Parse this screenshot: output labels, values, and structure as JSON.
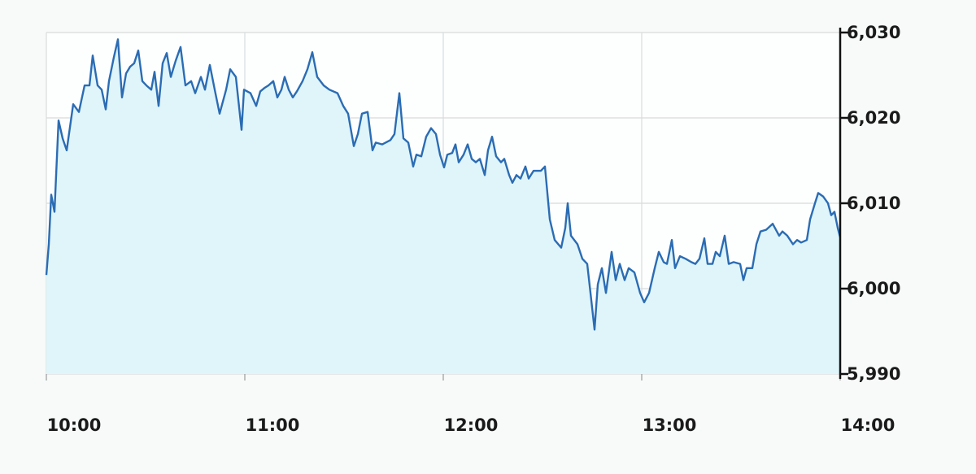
{
  "chart_data": {
    "type": "area",
    "title": "",
    "xlabel": "",
    "ylabel": "",
    "xlim": [
      "10:00:00",
      "14:00:00"
    ],
    "ylim": [
      5990,
      6030
    ],
    "x_ticks": [
      "10:00",
      "11:00",
      "12:00",
      "13:00",
      "14:00"
    ],
    "y_ticks": [
      "5,990",
      "6,000",
      "6,010",
      "6,020",
      "6,030"
    ],
    "y_tick_values": [
      5990,
      6000,
      6010,
      6020,
      6030
    ],
    "y_axis_position": "right",
    "grid": true,
    "colors": {
      "line": "#2b6cb3",
      "fill": "#dff5fa",
      "grid": "#d9dcdc",
      "axis": "#111111"
    },
    "series": [
      {
        "points": [
          [
            "10:00:00",
            6001.6
          ],
          [
            "10:00:44",
            6005.2
          ],
          [
            "10:01:29",
            6011.0
          ],
          [
            "10:02:28",
            6009.0
          ],
          [
            "10:03:41",
            6019.7
          ],
          [
            "10:04:55",
            6017.6
          ],
          [
            "10:06:09",
            6016.2
          ],
          [
            "10:08:07",
            6021.6
          ],
          [
            "10:09:50",
            6020.7
          ],
          [
            "10:11:33",
            6023.8
          ],
          [
            "10:13:02",
            6023.8
          ],
          [
            "10:14:01",
            6027.3
          ],
          [
            "10:15:29",
            6023.8
          ],
          [
            "10:16:43",
            6023.3
          ],
          [
            "10:17:57",
            6021.0
          ],
          [
            "10:18:56",
            6024.3
          ],
          [
            "10:20:25",
            6027.1
          ],
          [
            "10:21:38",
            6029.2
          ],
          [
            "10:22:52",
            6022.4
          ],
          [
            "10:24:06",
            6025.2
          ],
          [
            "10:25:20",
            6026.0
          ],
          [
            "10:26:33",
            6026.4
          ],
          [
            "10:27:47",
            6027.9
          ],
          [
            "10:29:01",
            6024.3
          ],
          [
            "10:30:15",
            6023.8
          ],
          [
            "10:31:43",
            6023.3
          ],
          [
            "10:32:42",
            6025.4
          ],
          [
            "10:33:56",
            6021.4
          ],
          [
            "10:35:10",
            6026.4
          ],
          [
            "10:36:23",
            6027.6
          ],
          [
            "10:37:37",
            6024.8
          ],
          [
            "10:39:06",
            6026.7
          ],
          [
            "10:40:34",
            6028.3
          ],
          [
            "10:42:03",
            6023.8
          ],
          [
            "10:43:46",
            6024.3
          ],
          [
            "10:45:00",
            6022.9
          ],
          [
            "10:46:43",
            6024.8
          ],
          [
            "10:47:57",
            6023.3
          ],
          [
            "10:49:26",
            6026.2
          ],
          [
            "10:50:54",
            6023.3
          ],
          [
            "10:52:23",
            6020.5
          ],
          [
            "10:54:20",
            6023.3
          ],
          [
            "10:55:34",
            6025.7
          ],
          [
            "10:57:17",
            6024.8
          ],
          [
            "10:59:01",
            6018.6
          ],
          [
            "10:59:45",
            6023.3
          ],
          [
            "11:01:43",
            6022.9
          ],
          [
            "11:03:26",
            6021.4
          ],
          [
            "11:04:40",
            6023.1
          ],
          [
            "11:05:54",
            6023.5
          ],
          [
            "11:07:08",
            6023.8
          ],
          [
            "11:08:36",
            6024.3
          ],
          [
            "11:09:50",
            6022.4
          ],
          [
            "11:11:04",
            6023.3
          ],
          [
            "11:12:03",
            6024.8
          ],
          [
            "11:13:17",
            6023.3
          ],
          [
            "11:14:30",
            6022.4
          ],
          [
            "11:15:44",
            6023.1
          ],
          [
            "11:17:27",
            6024.3
          ],
          [
            "11:18:56",
            6025.7
          ],
          [
            "11:20:25",
            6027.7
          ],
          [
            "11:21:53",
            6024.8
          ],
          [
            "11:23:51",
            6023.8
          ],
          [
            "11:25:34",
            6023.3
          ],
          [
            "11:28:02",
            6022.9
          ],
          [
            "11:29:45",
            6021.4
          ],
          [
            "11:31:14",
            6020.5
          ],
          [
            "11:32:57",
            6016.7
          ],
          [
            "11:34:11",
            6018.1
          ],
          [
            "11:35:25",
            6020.5
          ],
          [
            "11:37:08",
            6020.7
          ],
          [
            "11:38:36",
            6016.2
          ],
          [
            "11:39:35",
            6017.1
          ],
          [
            "11:41:34",
            6016.9
          ],
          [
            "11:44:01",
            6017.4
          ],
          [
            "11:45:15",
            6018.1
          ],
          [
            "11:46:43",
            6022.9
          ],
          [
            "11:47:57",
            6017.6
          ],
          [
            "11:49:26",
            6017.1
          ],
          [
            "11:50:54",
            6014.3
          ],
          [
            "11:51:53",
            6015.7
          ],
          [
            "11:53:22",
            6015.5
          ],
          [
            "11:54:50",
            6017.8
          ],
          [
            "11:56:19",
            6018.8
          ],
          [
            "11:57:47",
            6018.1
          ],
          [
            "11:59:01",
            6015.7
          ],
          [
            "12:00:15",
            6014.2
          ],
          [
            "12:01:14",
            6015.7
          ],
          [
            "12:02:42",
            6015.9
          ],
          [
            "12:03:41",
            6016.9
          ],
          [
            "12:04:40",
            6014.8
          ],
          [
            "12:06:09",
            6015.7
          ],
          [
            "12:07:23",
            6016.9
          ],
          [
            "12:08:36",
            6015.2
          ],
          [
            "12:09:50",
            6014.8
          ],
          [
            "12:11:04",
            6015.2
          ],
          [
            "12:12:32",
            6013.3
          ],
          [
            "12:13:31",
            6016.2
          ],
          [
            "12:14:45",
            6017.8
          ],
          [
            "12:15:59",
            6015.5
          ],
          [
            "12:17:28",
            6014.8
          ],
          [
            "12:18:26",
            6015.2
          ],
          [
            "12:19:55",
            6013.3
          ],
          [
            "12:20:54",
            6012.4
          ],
          [
            "12:22:08",
            6013.3
          ],
          [
            "12:23:22",
            6012.9
          ],
          [
            "12:24:50",
            6014.3
          ],
          [
            "12:25:49",
            6012.9
          ],
          [
            "12:27:17",
            6013.8
          ],
          [
            "12:29:31",
            6013.8
          ],
          [
            "12:30:44",
            6014.3
          ],
          [
            "12:32:13",
            6008.1
          ],
          [
            "12:33:41",
            6005.7
          ],
          [
            "12:35:39",
            6004.8
          ],
          [
            "12:36:53",
            6007.1
          ],
          [
            "12:37:37",
            6010.0
          ],
          [
            "12:38:36",
            6006.2
          ],
          [
            "12:40:34",
            6005.2
          ],
          [
            "12:42:03",
            6003.5
          ],
          [
            "12:43:31",
            6002.9
          ],
          [
            "12:44:30",
            5999.5
          ],
          [
            "12:45:44",
            5995.2
          ],
          [
            "12:46:43",
            6000.5
          ],
          [
            "12:47:57",
            6002.4
          ],
          [
            "12:49:11",
            5999.5
          ],
          [
            "12:50:54",
            6004.3
          ],
          [
            "12:52:08",
            6001.0
          ],
          [
            "12:53:22",
            6002.9
          ],
          [
            "12:54:50",
            6001.0
          ],
          [
            "12:56:04",
            6002.4
          ],
          [
            "12:57:47",
            6001.9
          ],
          [
            "12:59:31",
            5999.5
          ],
          [
            "13:00:44",
            5998.4
          ],
          [
            "13:02:13",
            5999.5
          ],
          [
            "13:03:56",
            6002.4
          ],
          [
            "13:05:10",
            6004.3
          ],
          [
            "13:06:38",
            6003.1
          ],
          [
            "13:07:37",
            6002.9
          ],
          [
            "13:09:06",
            6005.7
          ],
          [
            "13:10:05",
            6002.4
          ],
          [
            "13:11:34",
            6003.8
          ],
          [
            "13:13:17",
            6003.5
          ],
          [
            "13:15:00",
            6003.1
          ],
          [
            "13:16:14",
            6002.9
          ],
          [
            "13:17:28",
            6003.5
          ],
          [
            "13:18:56",
            6005.9
          ],
          [
            "13:19:55",
            6002.9
          ],
          [
            "13:21:23",
            6002.9
          ],
          [
            "13:22:23",
            6004.3
          ],
          [
            "13:23:37",
            6003.8
          ],
          [
            "13:25:05",
            6006.2
          ],
          [
            "13:26:19",
            6002.9
          ],
          [
            "13:27:47",
            6003.1
          ],
          [
            "13:29:45",
            6002.9
          ],
          [
            "13:30:44",
            6001.0
          ],
          [
            "13:31:43",
            6002.4
          ],
          [
            "13:33:26",
            6002.4
          ],
          [
            "13:34:40",
            6005.2
          ],
          [
            "13:35:54",
            6006.7
          ],
          [
            "13:37:37",
            6006.9
          ],
          [
            "13:39:35",
            6007.6
          ],
          [
            "13:41:34",
            6006.2
          ],
          [
            "13:42:32",
            6006.7
          ],
          [
            "13:44:01",
            6006.2
          ],
          [
            "13:45:44",
            6005.2
          ],
          [
            "13:46:58",
            6005.7
          ],
          [
            "13:48:12",
            6005.4
          ],
          [
            "13:49:55",
            6005.7
          ],
          [
            "13:50:54",
            6008.1
          ],
          [
            "13:52:23",
            6010.0
          ],
          [
            "13:53:22",
            6011.2
          ],
          [
            "13:54:50",
            6010.8
          ],
          [
            "13:56:19",
            6010.0
          ],
          [
            "13:57:17",
            6008.6
          ],
          [
            "13:58:17",
            6009.0
          ],
          [
            "13:59:16",
            6007.1
          ],
          [
            "14:00:00",
            6006.0
          ]
        ]
      }
    ]
  }
}
